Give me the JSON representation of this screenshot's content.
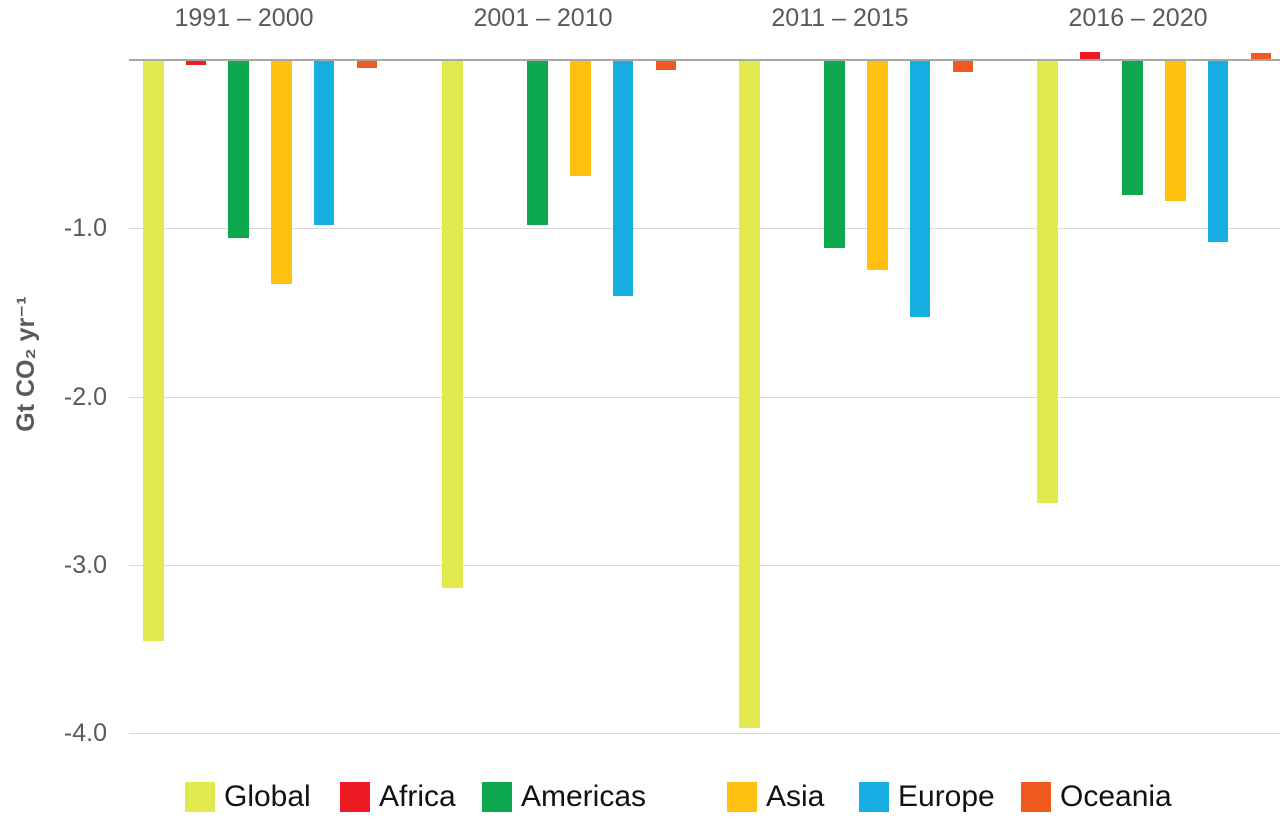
{
  "chart_data": {
    "type": "bar",
    "title": "",
    "xlabel": "",
    "ylabel": "Gt CO₂ yr⁻¹",
    "categories": [
      "1991 – 2000",
      "2001 – 2010",
      "2011 – 2015",
      "2016 – 2020"
    ],
    "series": [
      {
        "name": "Global",
        "color": "#E2E94E",
        "values": [
          -3.45,
          -3.14,
          -3.97,
          -2.63
        ]
      },
      {
        "name": "Africa",
        "color": "#ED1C24",
        "values": [
          -0.03,
          0.0,
          0.0,
          0.05
        ]
      },
      {
        "name": "Americas",
        "color": "#0EA84E",
        "values": [
          -1.06,
          -0.98,
          -1.12,
          -0.8
        ]
      },
      {
        "name": "Asia",
        "color": "#FFC010",
        "values": [
          -1.33,
          -0.69,
          -1.25,
          -0.84
        ]
      },
      {
        "name": "Europe",
        "color": "#17AEE4",
        "values": [
          -0.98,
          -1.4,
          -1.53,
          -1.08
        ]
      },
      {
        "name": "Oceania",
        "color": "#F05A1E",
        "values": [
          -0.05,
          -0.06,
          -0.07,
          0.04
        ]
      }
    ],
    "yticks": [
      {
        "value": -1.0,
        "label": "-1.0"
      },
      {
        "value": -2.0,
        "label": "-2.0"
      },
      {
        "value": -3.0,
        "label": "-3.0"
      },
      {
        "value": -4.0,
        "label": "-4.0"
      }
    ],
    "ylim": [
      0.15,
      -4.25
    ],
    "grid": true,
    "legend_position": "bottom",
    "colors": {
      "axis_text": "#595959",
      "zero_line": "#A6A6A6",
      "gridline": "#D9D9D9",
      "legend_text": "#111111",
      "background": "#FFFFFF"
    }
  }
}
